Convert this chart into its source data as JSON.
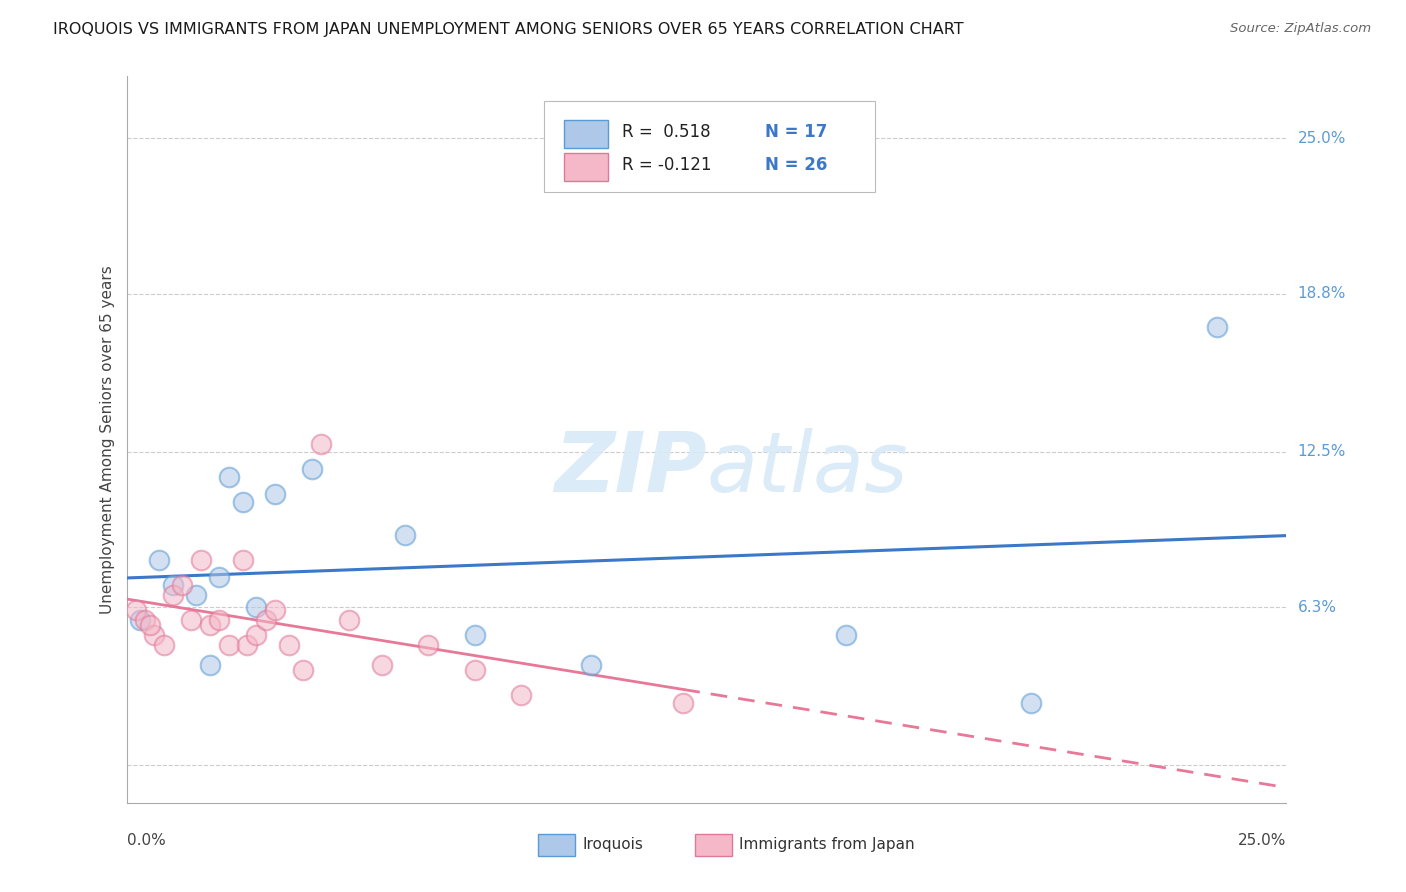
{
  "title": "IROQUOIS VS IMMIGRANTS FROM JAPAN UNEMPLOYMENT AMONG SENIORS OVER 65 YEARS CORRELATION CHART",
  "source": "Source: ZipAtlas.com",
  "ylabel": "Unemployment Among Seniors over 65 years",
  "y_tick_values": [
    0.0,
    0.063,
    0.125,
    0.188,
    0.25
  ],
  "y_tick_labels": [
    "",
    "6.3%",
    "12.5%",
    "18.8%",
    "25.0%"
  ],
  "x_min": 0.0,
  "x_max": 0.25,
  "y_min": -0.015,
  "y_max": 0.275,
  "iroquois_color": "#adc8e8",
  "iroquois_edge": "#5b9bd5",
  "immigrants_color": "#f4b8c8",
  "immigrants_edge": "#e07898",
  "line1_color": "#3c78c8",
  "line2_color": "#e87898",
  "right_label_color": "#5b9bd5",
  "watermark_color": "#d8eaf8",
  "iroquois_x": [
    0.003,
    0.007,
    0.01,
    0.015,
    0.018,
    0.02,
    0.022,
    0.025,
    0.028,
    0.032,
    0.04,
    0.06,
    0.075,
    0.1,
    0.155,
    0.195,
    0.235
  ],
  "iroquois_y": [
    0.058,
    0.082,
    0.072,
    0.068,
    0.04,
    0.075,
    0.115,
    0.105,
    0.063,
    0.108,
    0.118,
    0.092,
    0.052,
    0.04,
    0.052,
    0.025,
    0.175
  ],
  "immigrants_x": [
    0.002,
    0.004,
    0.006,
    0.008,
    0.01,
    0.012,
    0.014,
    0.016,
    0.018,
    0.02,
    0.022,
    0.025,
    0.026,
    0.028,
    0.03,
    0.032,
    0.035,
    0.038,
    0.042,
    0.048,
    0.055,
    0.065,
    0.075,
    0.085,
    0.12,
    0.005
  ],
  "immigrants_y": [
    0.062,
    0.058,
    0.052,
    0.048,
    0.068,
    0.072,
    0.058,
    0.082,
    0.056,
    0.058,
    0.048,
    0.082,
    0.048,
    0.052,
    0.058,
    0.062,
    0.048,
    0.038,
    0.128,
    0.058,
    0.04,
    0.048,
    0.038,
    0.028,
    0.025,
    0.056
  ],
  "scatter_size": 200,
  "scatter_alpha": 0.55
}
